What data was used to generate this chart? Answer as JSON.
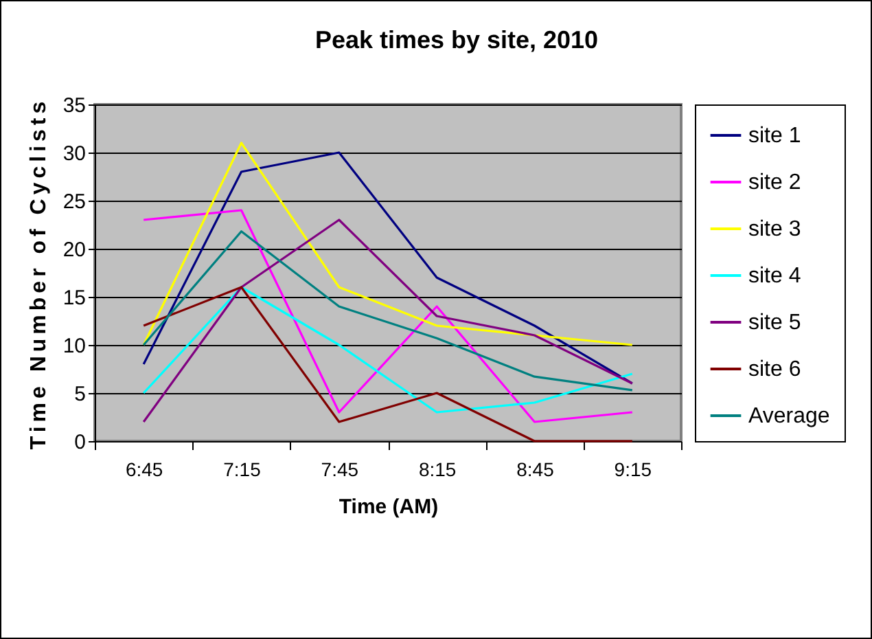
{
  "chart_data": {
    "type": "line",
    "title": "Peak times by site, 2010",
    "xlabel": "Time (AM)",
    "ylabel": "Time Number of Cyclists",
    "categories": [
      "6:45",
      "7:15",
      "7:45",
      "8:15",
      "8:45",
      "9:15"
    ],
    "series": [
      {
        "name": "site 1",
        "color": "#000080",
        "values": [
          8,
          28,
          30,
          17,
          12,
          6
        ]
      },
      {
        "name": "site 2",
        "color": "#ff00ff",
        "values": [
          23,
          24,
          3,
          14,
          2,
          3
        ]
      },
      {
        "name": "site 3",
        "color": "#ffff00",
        "values": [
          10,
          31,
          16,
          12,
          11,
          10
        ]
      },
      {
        "name": "site 4",
        "color": "#00ffff",
        "values": [
          5,
          16,
          10,
          3,
          4,
          7
        ]
      },
      {
        "name": "site 5",
        "color": "#800080",
        "values": [
          2,
          16,
          23,
          13,
          11,
          6
        ]
      },
      {
        "name": "site 6",
        "color": "#800000",
        "values": [
          12,
          16,
          2,
          5,
          0,
          0
        ]
      },
      {
        "name": "Average",
        "color": "#008080",
        "values": [
          10,
          21.8,
          14,
          10.7,
          6.7,
          5.3
        ]
      }
    ],
    "ylim": [
      0,
      35
    ],
    "yticks": [
      0,
      5,
      10,
      15,
      20,
      25,
      30,
      35
    ],
    "grid": "y",
    "legend": "right",
    "marker": "none",
    "line_style": "solid"
  }
}
